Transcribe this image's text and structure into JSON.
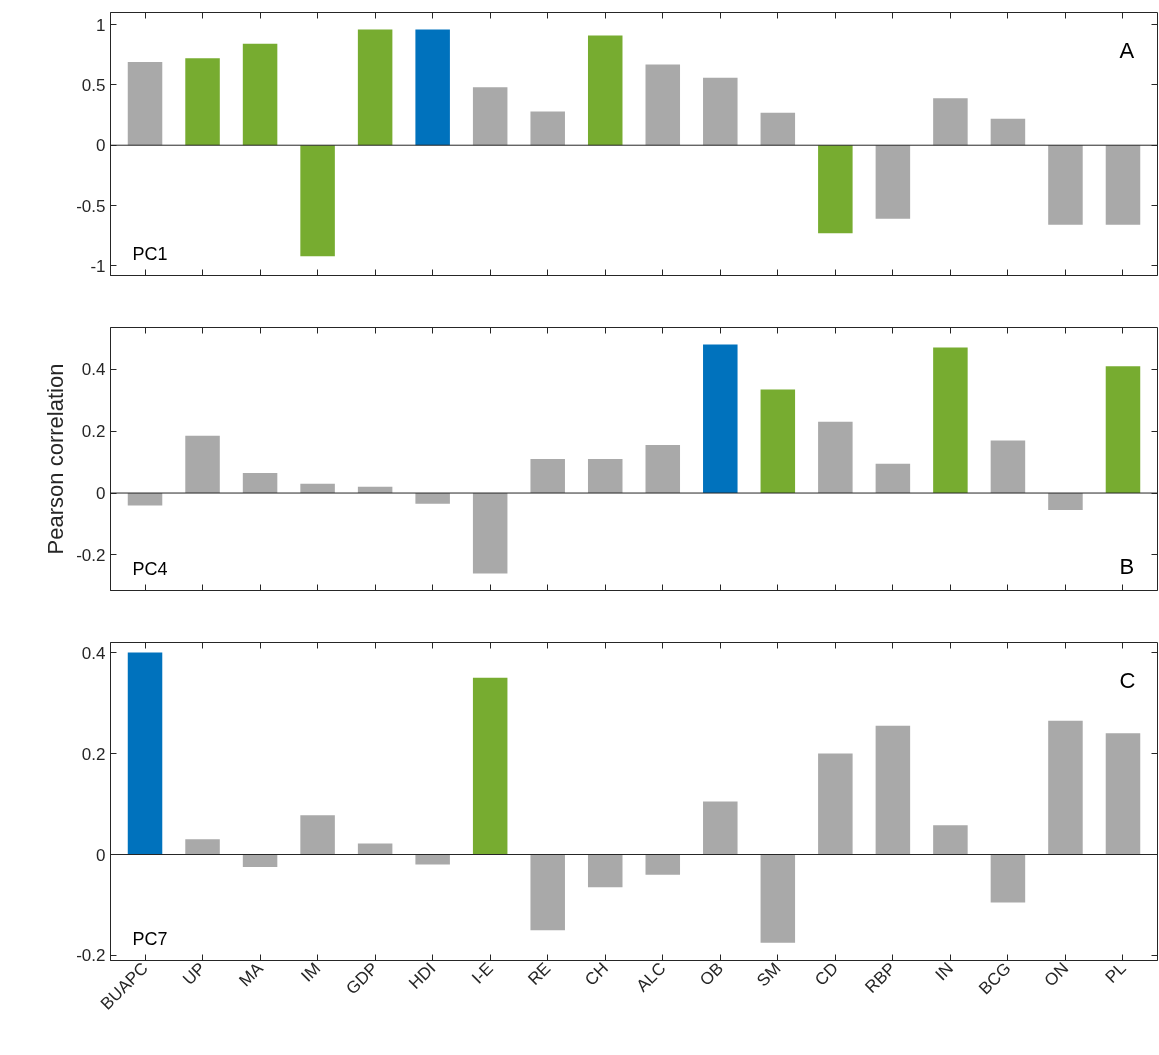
{
  "chart_data": [
    {
      "type": "bar",
      "categories": [
        null,
        null,
        null,
        null,
        null,
        null,
        null,
        null,
        null,
        null,
        null,
        null,
        null,
        null,
        null,
        null,
        null,
        null
      ],
      "values": [
        0.69,
        0.72,
        0.84,
        -0.92,
        0.96,
        0.96,
        0.48,
        0.28,
        0.91,
        0.67,
        0.56,
        0.27,
        -0.73,
        -0.61,
        0.39,
        0.22,
        -0.66,
        -0.66
      ],
      "colors": [
        "#a9a9a9",
        "#77ac30",
        "#77ac30",
        "#77ac30",
        "#77ac30",
        "#0072bd",
        "#a9a9a9",
        "#a9a9a9",
        "#77ac30",
        "#a9a9a9",
        "#a9a9a9",
        "#a9a9a9",
        "#77ac30",
        "#a9a9a9",
        "#a9a9a9",
        "#a9a9a9",
        "#a9a9a9",
        "#a9a9a9"
      ],
      "ylim": [
        -1.08,
        1.1
      ],
      "yticks": [
        -1,
        -0.5,
        0,
        0.5,
        1
      ],
      "tick_labels": "y",
      "ref_lines": [
        {
          "axis": "y",
          "value": 0
        }
      ],
      "annotations": [
        "PC1",
        "A"
      ]
    },
    {
      "type": "bar",
      "categories": [
        null,
        null,
        null,
        null,
        null,
        null,
        null,
        null,
        null,
        null,
        null,
        null,
        null,
        null,
        null,
        null,
        null,
        null
      ],
      "values": [
        -0.04,
        0.185,
        0.065,
        0.03,
        0.02,
        -0.035,
        -0.26,
        0.11,
        0.11,
        0.155,
        0.48,
        0.335,
        0.23,
        0.095,
        0.47,
        0.17,
        -0.055,
        0.41
      ],
      "colors": [
        "#a9a9a9",
        "#a9a9a9",
        "#a9a9a9",
        "#a9a9a9",
        "#a9a9a9",
        "#a9a9a9",
        "#a9a9a9",
        "#a9a9a9",
        "#a9a9a9",
        "#a9a9a9",
        "#0072bd",
        "#77ac30",
        "#a9a9a9",
        "#a9a9a9",
        "#77ac30",
        "#a9a9a9",
        "#a9a9a9",
        "#77ac30"
      ],
      "ylim": [
        -0.315,
        0.535
      ],
      "yticks": [
        -0.2,
        0,
        0.2,
        0.4
      ],
      "tick_labels": "y",
      "ref_lines": [
        {
          "axis": "y",
          "value": 0
        }
      ],
      "ylabel": "Pearson correlation",
      "annotations": [
        "PC4",
        "B"
      ]
    },
    {
      "type": "bar",
      "categories": [
        "BUAPC",
        "UP",
        "MA",
        "IM",
        "GDP",
        "HDI",
        "I-E",
        "RE",
        "CH",
        "ALC",
        "OB",
        "SM",
        "CD",
        "RBP",
        "IN",
        "BCG",
        "ON",
        "PL"
      ],
      "values": [
        0.4,
        0.03,
        -0.025,
        0.078,
        0.022,
        -0.02,
        0.35,
        -0.15,
        -0.065,
        -0.04,
        0.105,
        -0.175,
        0.2,
        0.255,
        0.058,
        -0.095,
        0.265,
        0.24
      ],
      "colors": [
        "#0072bd",
        "#a9a9a9",
        "#a9a9a9",
        "#a9a9a9",
        "#a9a9a9",
        "#a9a9a9",
        "#77ac30",
        "#a9a9a9",
        "#a9a9a9",
        "#a9a9a9",
        "#a9a9a9",
        "#a9a9a9",
        "#a9a9a9",
        "#a9a9a9",
        "#a9a9a9",
        "#a9a9a9",
        "#a9a9a9",
        "#a9a9a9"
      ],
      "ylim": [
        -0.21,
        0.42
      ],
      "yticks": [
        -0.2,
        0,
        0.2,
        0.4
      ],
      "ref_lines": [
        {
          "axis": "y",
          "value": 0
        }
      ],
      "annotations": [
        "PC7",
        "C"
      ]
    }
  ]
}
